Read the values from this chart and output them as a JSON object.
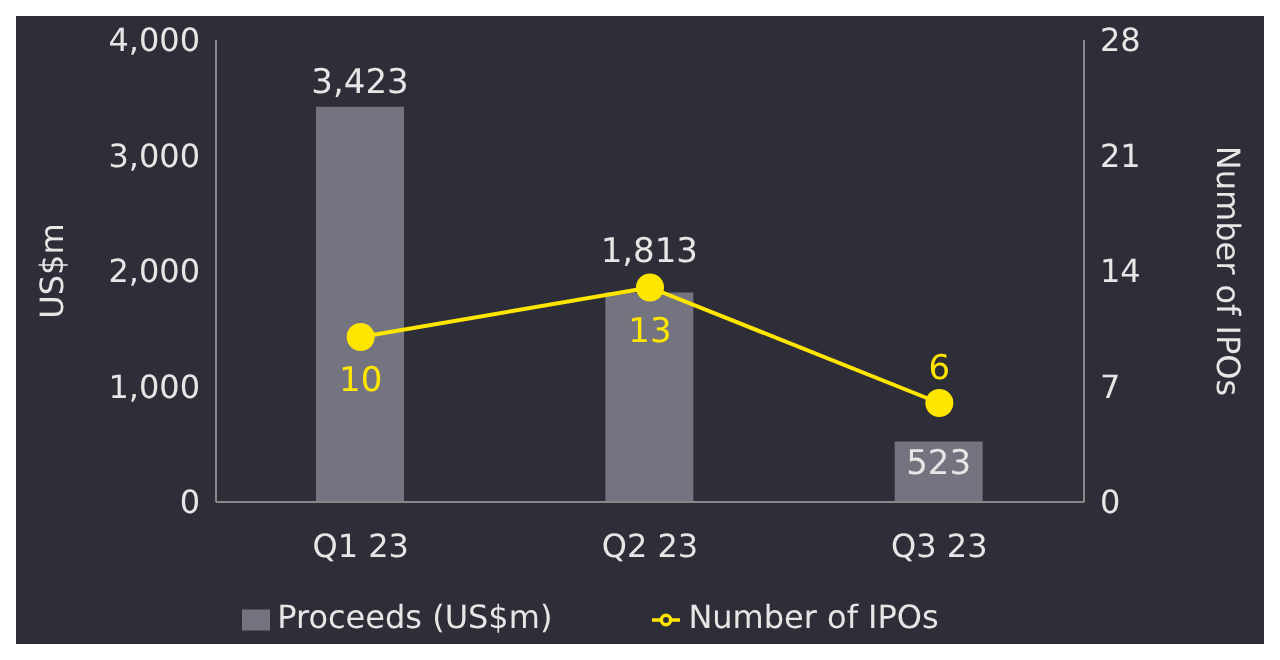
{
  "chart_data": {
    "type": "bar",
    "categories": [
      "Q1 23",
      "Q2 23",
      "Q3 23"
    ],
    "series": [
      {
        "name": "Proceeds (US$m)",
        "color": "#747480",
        "values": [
          3423,
          1813,
          523
        ],
        "value_labels": [
          "3,423",
          "1,813",
          "523"
        ]
      },
      {
        "name": "Number of IPOs",
        "type": "line",
        "axis": "y2",
        "color": "#ffe600",
        "values": [
          10,
          13,
          6
        ],
        "value_labels": [
          "10",
          "13",
          "6"
        ]
      }
    ],
    "ylabel": "US$m",
    "y2label": "Number of IPOs",
    "ylim": [
      0,
      4000
    ],
    "yticks": [
      {
        "value": 0,
        "label": "0"
      },
      {
        "value": 1000,
        "label": "1,000"
      },
      {
        "value": 2000,
        "label": "2,000"
      },
      {
        "value": 3000,
        "label": "3,000"
      },
      {
        "value": 4000,
        "label": "4,000"
      }
    ],
    "y2lim": [
      0,
      28
    ],
    "y2ticks": [
      0,
      7,
      14,
      21,
      28
    ],
    "grid": false,
    "legend": "bottom",
    "marker": "circle",
    "line_style": "solid"
  }
}
